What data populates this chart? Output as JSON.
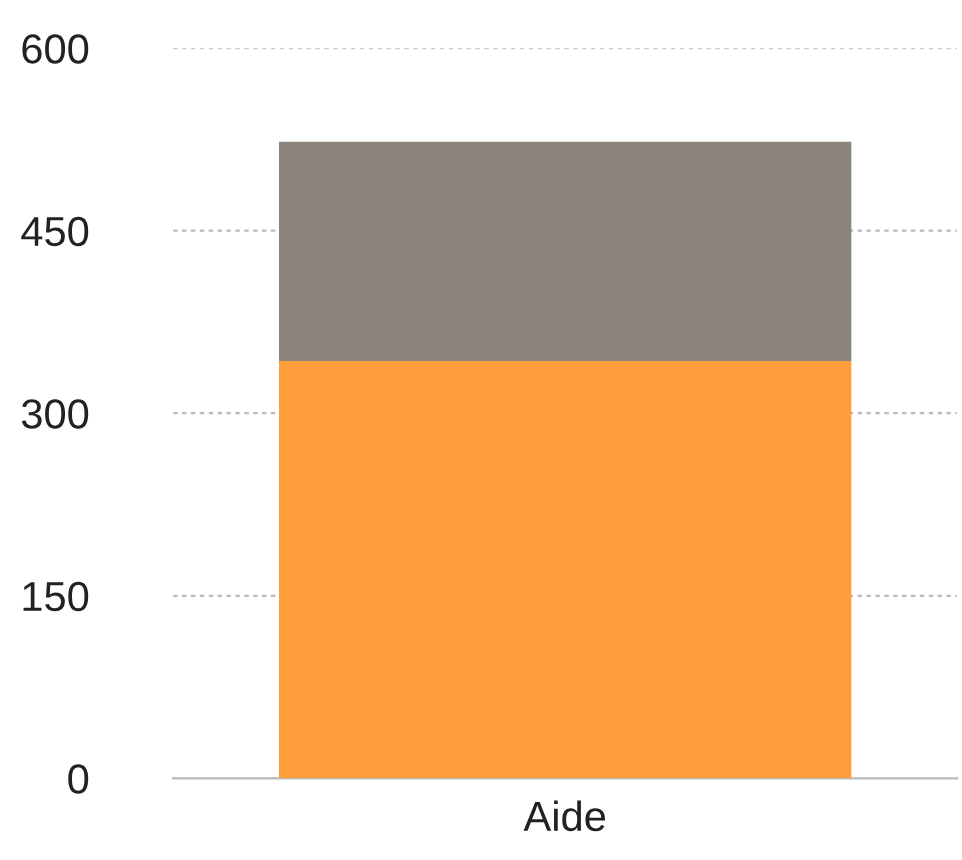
{
  "chart_data": {
    "type": "bar",
    "stacked": true,
    "categories": [
      "Aide"
    ],
    "series": [
      {
        "color": "#ff9d3c",
        "values": [
          343
        ]
      },
      {
        "color": "#8a847d",
        "values": [
          180
        ]
      }
    ],
    "ylim": [
      0,
      600
    ],
    "yticks": [
      0,
      150,
      300,
      450,
      600
    ],
    "grid": "y"
  }
}
